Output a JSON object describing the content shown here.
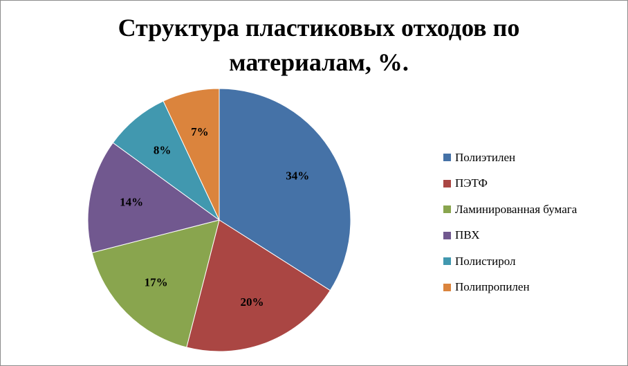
{
  "chart_data": {
    "type": "pie",
    "title": "Структура пластиковых отходов по материалам, %.",
    "categories": [
      "Полиэтилен",
      "ПЭТФ",
      "Ламинированная бумага",
      "ПВХ",
      "Полистирол",
      "Полипропилен"
    ],
    "values": [
      34,
      20,
      17,
      14,
      8,
      7
    ],
    "data_labels": [
      "34%",
      "20%",
      "17%",
      "14%",
      "8%",
      "7%"
    ],
    "colors": [
      "#4572A7",
      "#AA4643",
      "#89A54E",
      "#71588F",
      "#4198AF",
      "#DB843D"
    ],
    "legend_position": "right",
    "start_angle": "12 o'clock, clockwise"
  }
}
